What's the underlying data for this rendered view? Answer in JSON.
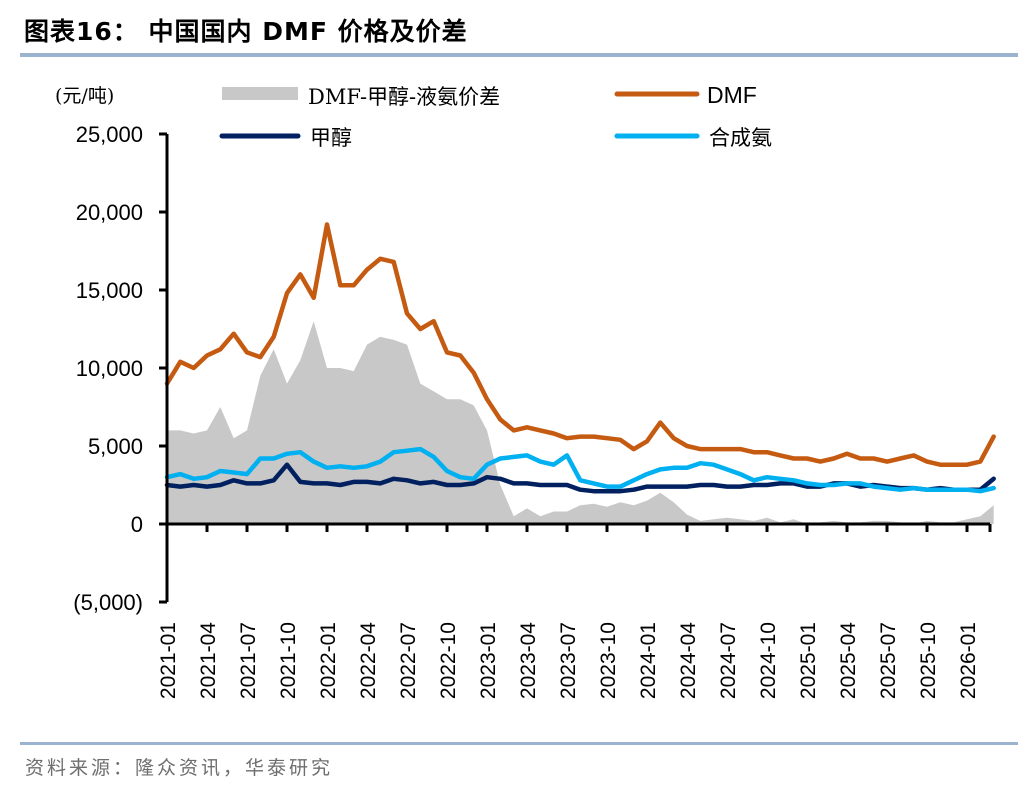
{
  "header": {
    "title": "图表16：  中国国内 DMF 价格及价差"
  },
  "footer": {
    "source": "资料来源：隆众资讯，华泰研究"
  },
  "chart_data": {
    "type": "line",
    "title": "中国国内 DMF 价格及价差",
    "ylabel": "(元/吨)",
    "xlabel": "",
    "ylim": [
      -5000,
      25000
    ],
    "yticks": [
      -5000,
      0,
      5000,
      10000,
      15000,
      20000,
      25000
    ],
    "ytick_labels": [
      "(5,000)",
      "0",
      "5,000",
      "10,000",
      "15,000",
      "20,000",
      "25,000"
    ],
    "x_tick_labels": [
      "2021-01",
      "2021-04",
      "2021-07",
      "2021-10",
      "2022-01",
      "2022-04",
      "2022-07",
      "2022-10",
      "2023-01",
      "2023-04",
      "2023-07",
      "2023-10",
      "2024-01",
      "2024-04",
      "2024-07",
      "2024-10",
      "2025-01",
      "2025-04",
      "2025-07",
      "2025-10",
      "2026-01"
    ],
    "grid": false,
    "legend_position": "top",
    "x": [
      "2021-01",
      "2021-02",
      "2021-03",
      "2021-04",
      "2021-05",
      "2021-06",
      "2021-07",
      "2021-08",
      "2021-09",
      "2021-10",
      "2021-11",
      "2021-12",
      "2022-01",
      "2022-02",
      "2022-03",
      "2022-04",
      "2022-05",
      "2022-06",
      "2022-07",
      "2022-08",
      "2022-09",
      "2022-10",
      "2022-11",
      "2022-12",
      "2023-01",
      "2023-02",
      "2023-03",
      "2023-04",
      "2023-05",
      "2023-06",
      "2023-07",
      "2023-08",
      "2023-09",
      "2023-10",
      "2023-11",
      "2023-12",
      "2024-01",
      "2024-02",
      "2024-03",
      "2024-04",
      "2024-05",
      "2024-06",
      "2024-07",
      "2024-08",
      "2024-09",
      "2024-10",
      "2024-11",
      "2024-12",
      "2025-01",
      "2025-02",
      "2025-03",
      "2025-04",
      "2025-05",
      "2025-06",
      "2025-07",
      "2025-08",
      "2025-09",
      "2025-10",
      "2025-11",
      "2025-12",
      "2026-01",
      "2026-02",
      "2026-03"
    ],
    "series": [
      {
        "name": "DMF-甲醇-液氨价差",
        "type": "area",
        "color": "#c8c8c8",
        "values": [
          6000,
          6000,
          5800,
          6000,
          7500,
          5500,
          6000,
          9500,
          11200,
          9000,
          10500,
          13000,
          10000,
          10000,
          9800,
          11500,
          12000,
          11800,
          11500,
          9000,
          8500,
          8000,
          8000,
          7600,
          6000,
          2500,
          500,
          1000,
          500,
          800,
          800,
          1200,
          1300,
          1100,
          1400,
          1200,
          1500,
          2000,
          1400,
          600,
          200,
          300,
          400,
          300,
          200,
          400,
          100,
          300,
          0,
          100,
          200,
          100,
          100,
          200,
          200,
          100,
          0,
          200,
          100,
          100,
          300,
          500,
          1200
        ]
      },
      {
        "name": "DMF",
        "type": "line",
        "color": "#c55a11",
        "values": [
          9000,
          10400,
          10000,
          10800,
          11200,
          12200,
          11000,
          10700,
          12000,
          14800,
          16000,
          14500,
          19200,
          15300,
          15300,
          16300,
          17000,
          16800,
          13500,
          12500,
          13000,
          11000,
          10800,
          9700,
          8000,
          6700,
          6000,
          6200,
          6000,
          5800,
          5500,
          5600,
          5600,
          5500,
          5400,
          4800,
          5300,
          6500,
          5500,
          5000,
          4800,
          4800,
          4800,
          4800,
          4600,
          4600,
          4400,
          4200,
          4200,
          4000,
          4200,
          4500,
          4200,
          4200,
          4000,
          4200,
          4400,
          4000,
          3800,
          3800,
          3800,
          4000,
          5600
        ]
      },
      {
        "name": "甲醇",
        "type": "line",
        "color": "#002060",
        "values": [
          2500,
          2400,
          2500,
          2400,
          2500,
          2800,
          2600,
          2600,
          2800,
          3800,
          2700,
          2600,
          2600,
          2500,
          2700,
          2700,
          2600,
          2900,
          2800,
          2600,
          2700,
          2500,
          2500,
          2600,
          3000,
          2900,
          2600,
          2600,
          2500,
          2500,
          2500,
          2200,
          2100,
          2100,
          2100,
          2200,
          2400,
          2400,
          2400,
          2400,
          2500,
          2500,
          2400,
          2400,
          2500,
          2500,
          2600,
          2600,
          2400,
          2400,
          2600,
          2600,
          2400,
          2500,
          2400,
          2300,
          2300,
          2200,
          2300,
          2200,
          2200,
          2200,
          2900
        ]
      },
      {
        "name": "合成氨",
        "type": "line",
        "color": "#00b0f0",
        "values": [
          3000,
          3200,
          2900,
          3000,
          3400,
          3300,
          3200,
          4200,
          4200,
          4500,
          4600,
          4000,
          3600,
          3700,
          3600,
          3700,
          4000,
          4600,
          4700,
          4800,
          4300,
          3400,
          3000,
          2900,
          3800,
          4200,
          4300,
          4400,
          4000,
          3800,
          4400,
          2800,
          2600,
          2400,
          2400,
          2800,
          3200,
          3500,
          3600,
          3600,
          3900,
          3800,
          3500,
          3200,
          2800,
          3000,
          2900,
          2800,
          2600,
          2500,
          2500,
          2600,
          2600,
          2400,
          2300,
          2200,
          2300,
          2200,
          2200,
          2200,
          2200,
          2100,
          2300
        ]
      }
    ]
  },
  "legend": {
    "spread": "DMF-甲醇-液氨价差",
    "dmf": "DMF",
    "methanol": "甲醇",
    "ammonia": "合成氨"
  }
}
